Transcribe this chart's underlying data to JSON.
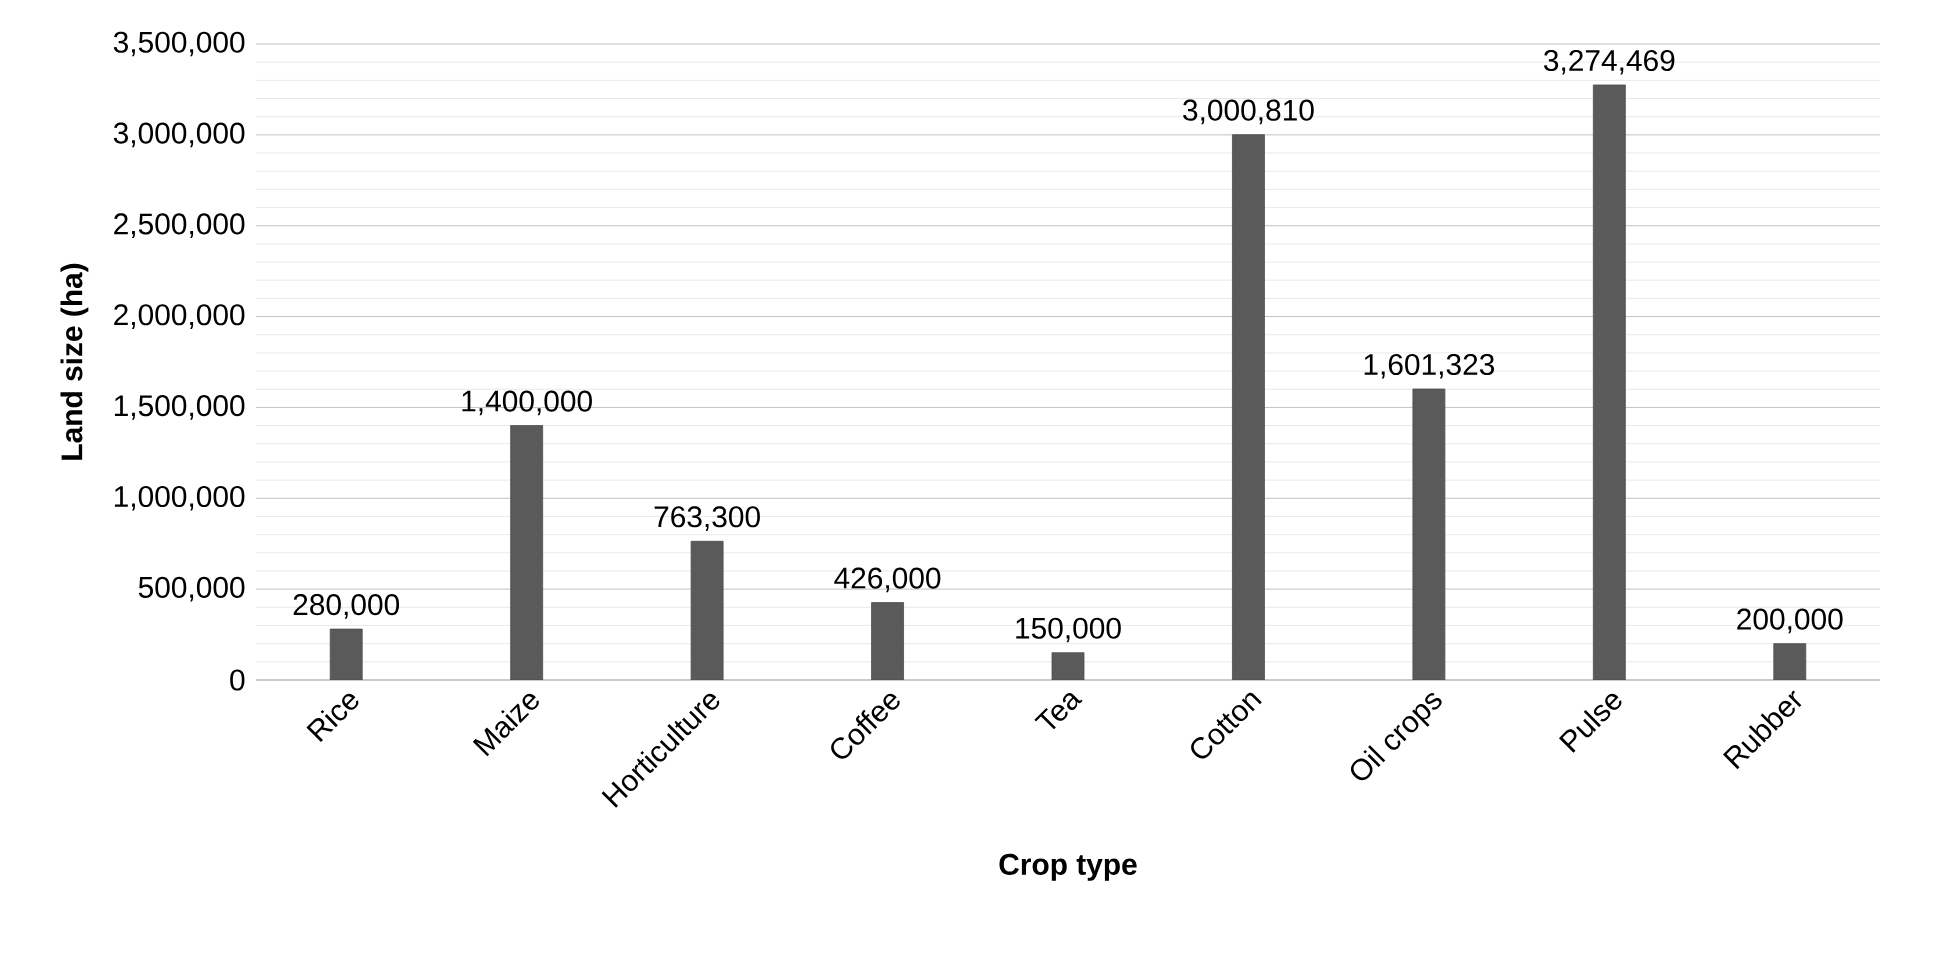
{
  "chart_data": {
    "type": "bar",
    "xlabel": "Crop type",
    "ylabel": "Land size (ha)",
    "categories": [
      "Rice",
      "Maize",
      "Horticulture",
      "Coffee",
      "Tea",
      "Cotton",
      "Oil crops",
      "Pulse",
      "Rubber"
    ],
    "values": [
      280000,
      1400000,
      763300,
      426000,
      150000,
      3000810,
      1601323,
      3274469,
      200000
    ],
    "color": "#5a5a5a",
    "ylim": [
      0,
      3500000
    ],
    "yticks": [
      {
        "value": 0,
        "label": "0"
      },
      {
        "value": 500000,
        "label": "500,000"
      },
      {
        "value": 1000000,
        "label": "1,000,000"
      },
      {
        "value": 1500000,
        "label": "1,500,000"
      },
      {
        "value": 2000000,
        "label": "2,000,000"
      },
      {
        "value": 2500000,
        "label": "2,500,000"
      },
      {
        "value": 3000000,
        "label": "3,000,000"
      },
      {
        "value": 3500000,
        "label": "3,500,000"
      }
    ],
    "value_labels": [
      "280,000",
      "1,400,000",
      "763,300",
      "426,000",
      "150,000",
      "3,000,810",
      "1,601,323",
      "3,274,469",
      "200,000"
    ],
    "grid": "y"
  }
}
